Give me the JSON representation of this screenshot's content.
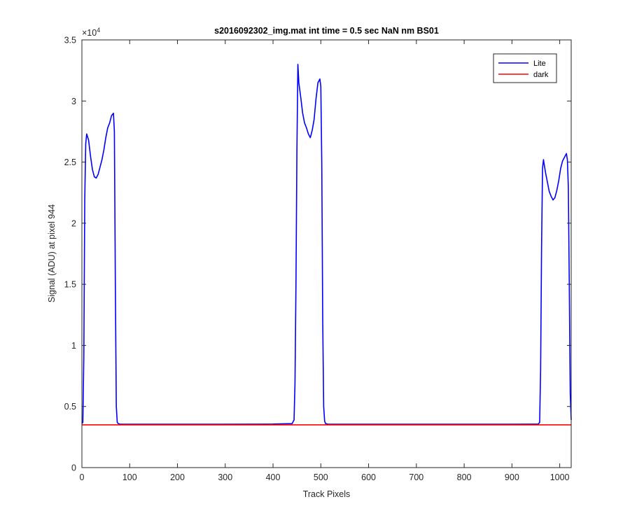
{
  "chart_data": {
    "type": "line",
    "title": "s2016092302_img.mat int time = 0.5 sec  NaN nm BS01",
    "xlabel": "Track Pixels",
    "ylabel": "Signal (ADU) at pixel 944",
    "xlim": [
      0,
      1024
    ],
    "ylim": [
      0,
      35000
    ],
    "x_ticks": [
      0,
      100,
      200,
      300,
      400,
      500,
      600,
      700,
      800,
      900,
      1000
    ],
    "x_tick_labels": [
      "0",
      "100",
      "200",
      "300",
      "400",
      "500",
      "600",
      "700",
      "800",
      "900",
      "1000"
    ],
    "y_ticks": [
      0,
      5000,
      10000,
      15000,
      20000,
      25000,
      30000,
      35000
    ],
    "y_tick_labels": [
      "0",
      "0.5",
      "1",
      "1.5",
      "2",
      "2.5",
      "3",
      "3.5"
    ],
    "y_exponent_label": "×10",
    "y_exponent_power": "4",
    "grid": false,
    "legend_position": "top-right",
    "series": [
      {
        "name": "Lite",
        "color": "#0000ff",
        "x": [
          0,
          2,
          4,
          6,
          8,
          10,
          14,
          18,
          22,
          26,
          30,
          34,
          38,
          42,
          46,
          50,
          54,
          58,
          62,
          66,
          68,
          70,
          72,
          74,
          76,
          80,
          100,
          200,
          300,
          400,
          440,
          444,
          446,
          448,
          450,
          452,
          454,
          458,
          462,
          466,
          470,
          474,
          478,
          482,
          486,
          490,
          494,
          498,
          500,
          502,
          504,
          506,
          508,
          510,
          515,
          600,
          700,
          800,
          900,
          955,
          958,
          960,
          962,
          964,
          966,
          970,
          974,
          978,
          982,
          986,
          990,
          994,
          998,
          1002,
          1006,
          1010,
          1014,
          1016,
          1018,
          1020,
          1022,
          1024
        ],
        "y": [
          3600,
          3700,
          9000,
          22000,
          26500,
          27300,
          26800,
          25500,
          24400,
          23800,
          23700,
          24000,
          24600,
          25200,
          26000,
          27000,
          27800,
          28200,
          28800,
          29000,
          27500,
          15000,
          5000,
          3700,
          3600,
          3550,
          3550,
          3550,
          3550,
          3560,
          3600,
          3900,
          7000,
          15000,
          26000,
          33000,
          31500,
          30300,
          29000,
          28200,
          27800,
          27300,
          27000,
          27600,
          28500,
          30200,
          31500,
          31800,
          31200,
          25000,
          12000,
          5000,
          3800,
          3600,
          3550,
          3550,
          3550,
          3550,
          3550,
          3560,
          3700,
          8000,
          18000,
          24500,
          25200,
          24200,
          23400,
          22600,
          22200,
          21900,
          22100,
          22700,
          23500,
          24500,
          25100,
          25400,
          25700,
          25200,
          23000,
          15000,
          6000,
          3900
        ]
      },
      {
        "name": "dark",
        "color": "#ff0000",
        "x": [
          0,
          1024
        ],
        "y": [
          3500,
          3500
        ]
      }
    ]
  }
}
